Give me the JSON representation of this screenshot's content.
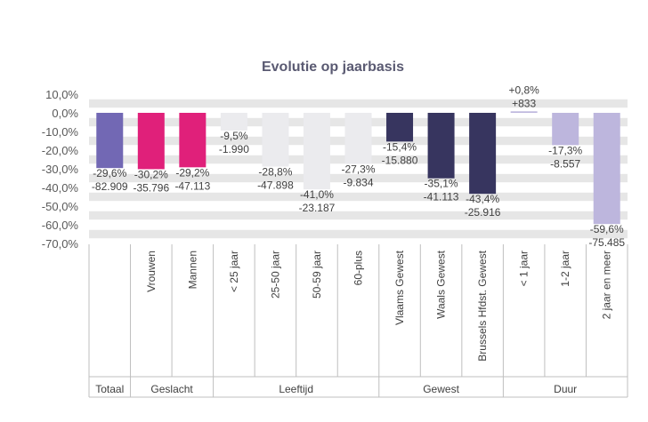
{
  "chart_data": {
    "type": "bar",
    "title": "Evolutie op jaarbasis",
    "xlabel": "",
    "ylabel": "",
    "ylim": [
      -70,
      10
    ],
    "yticks": [
      "10,0%",
      "0,0%",
      "-10,0%",
      "-20,0%",
      "-30,0%",
      "-40,0%",
      "-50,0%",
      "-60,0%",
      "-70,0%"
    ],
    "grid": "horizontal bands",
    "legend": "none",
    "colors": {
      "band": "#e6e6e6",
      "axis": "#bfbfbf",
      "title": "#5a5a72",
      "text": "#404040"
    },
    "bars": [
      {
        "category": "",
        "group": "Totaal",
        "value": -29.6,
        "pct_label": "-29,6%",
        "abs_label": "-82.909",
        "color": "#7268b4"
      },
      {
        "category": "Vrouwen",
        "group": "Geslacht",
        "value": -30.2,
        "pct_label": "-30,2%",
        "abs_label": "-35.796",
        "color": "#e0207a"
      },
      {
        "category": "Mannen",
        "group": "Geslacht",
        "value": -29.2,
        "pct_label": "-29,2%",
        "abs_label": "-47.113",
        "color": "#e0207a"
      },
      {
        "category": "< 25 jaar",
        "group": "Leeftijd",
        "value": -9.5,
        "pct_label": "-9,5%",
        "abs_label": "-1.990",
        "color": "#ebebee"
      },
      {
        "category": "25-50 jaar",
        "group": "Leeftijd",
        "value": -28.8,
        "pct_label": "-28,8%",
        "abs_label": "-47.898",
        "color": "#ebebee"
      },
      {
        "category": "50-59 jaar",
        "group": "Leeftijd",
        "value": -41.0,
        "pct_label": "-41,0%",
        "abs_label": "-23.187",
        "color": "#ebebee"
      },
      {
        "category": "60-plus",
        "group": "Leeftijd",
        "value": -27.3,
        "pct_label": "-27,3%",
        "abs_label": "-9.834",
        "color": "#ebebee"
      },
      {
        "category": "Vlaams Gewest",
        "group": "Gewest",
        "value": -15.4,
        "pct_label": "-15,4%",
        "abs_label": "-15.880",
        "color": "#37355f"
      },
      {
        "category": "Waals Gewest",
        "group": "Gewest",
        "value": -35.1,
        "pct_label": "-35,1%",
        "abs_label": "-41.113",
        "color": "#37355f"
      },
      {
        "category": "Brussels Hfdst. Gewest",
        "group": "Gewest",
        "value": -43.4,
        "pct_label": "-43,4%",
        "abs_label": "-25.916",
        "color": "#37355f"
      },
      {
        "category": "< 1 jaar",
        "group": "Duur",
        "value": 0.8,
        "pct_label": "+0,8%",
        "abs_label": "+833",
        "color": "#bdb6dd"
      },
      {
        "category": "1-2 jaar",
        "group": "Duur",
        "value": -17.3,
        "pct_label": "-17,3%",
        "abs_label": "-8.557",
        "color": "#bdb6dd"
      },
      {
        "category": "2 jaar en meer",
        "group": "Duur",
        "value": -59.6,
        "pct_label": "-59,6%",
        "abs_label": "-75.485",
        "color": "#bdb6dd"
      }
    ],
    "groups": [
      "Totaal",
      "Geslacht",
      "Leeftijd",
      "Gewest",
      "Duur"
    ]
  }
}
